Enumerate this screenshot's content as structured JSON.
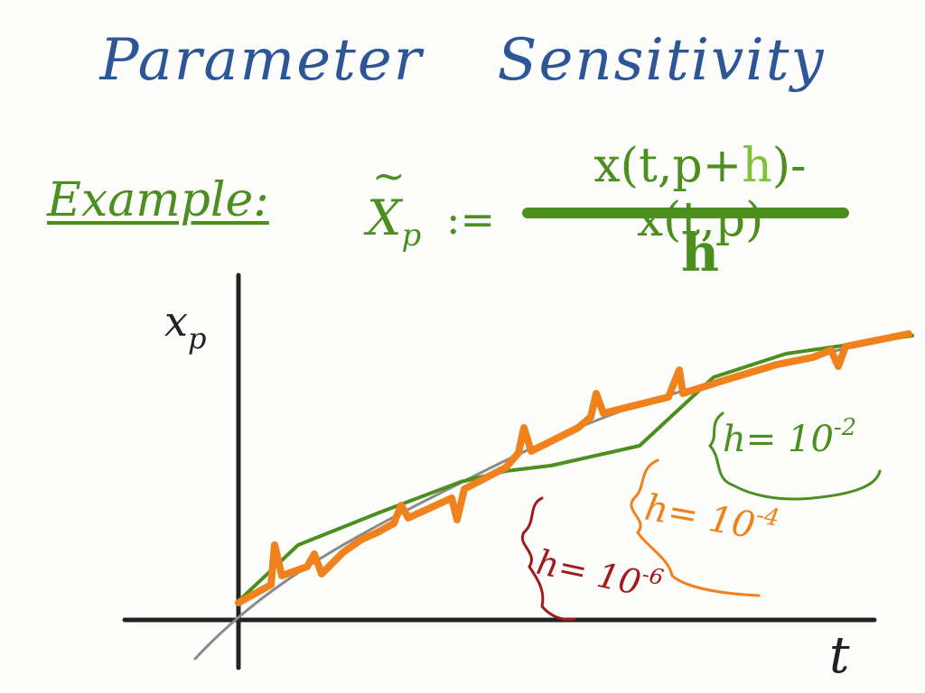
{
  "title": "Parameter Sensitivity",
  "example_label": "Example:",
  "formula": {
    "lhs_var": "X",
    "lhs_sub": "p",
    "lhs_tilde": "~",
    "assign": ":=",
    "numerator_a": "x(t,p+",
    "numerator_h": "h",
    "numerator_b": ")- x(t,p)",
    "denominator": "h"
  },
  "plot": {
    "y_axis_label": "x",
    "y_axis_sub": "p",
    "x_axis_label": "t",
    "annotations": [
      {
        "text": "h= 10",
        "exp": "-2",
        "color": "#4b8f1f"
      },
      {
        "text": "h= 10",
        "exp": "-4",
        "color": "#f0821e"
      },
      {
        "text": "h= 10",
        "exp": "-6",
        "color": "#a01c1c"
      }
    ]
  },
  "colors": {
    "title": "#2c5696",
    "green": "#4b8f1f",
    "orange": "#f0821e",
    "red": "#a01c1c",
    "gray": "#8a8a8a",
    "axis": "#222222"
  }
}
